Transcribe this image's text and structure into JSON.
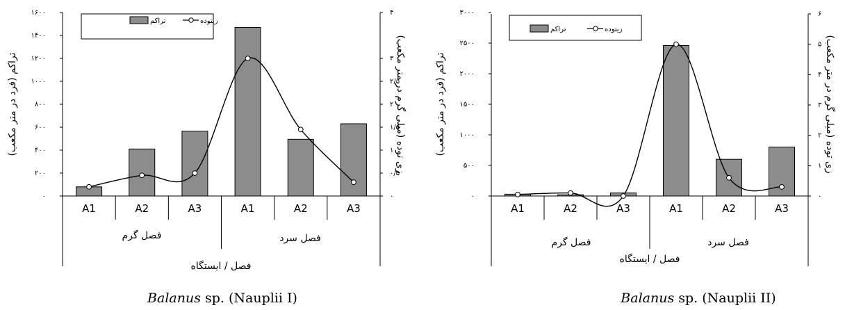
{
  "chart_data": [
    {
      "type": "bar",
      "categories": [
        "A1",
        "A2",
        "A3",
        "A1",
        "A2",
        "A3"
      ],
      "groups": [
        "فصل گرم",
        "فصل سرد"
      ],
      "xlabel": "فصل / ایستگاه",
      "ylabel": "تراکم (فرد در متر مکعب)",
      "y2label": "زی توده (میلی گرم در متر مکعب)",
      "ylim": [
        0,
        1600
      ],
      "y2lim": [
        0,
        4
      ],
      "yticks": [
        "۰",
        "۲۰۰",
        "۴۰۰",
        "۶۰۰",
        "۸۰۰",
        "۱۰۰۰",
        "۱۲۰۰",
        "۱۴۰۰",
        "۱۶۰۰"
      ],
      "y2ticks": [
        "۰",
        "۰/۵",
        "۱",
        "۱/۵",
        "۲",
        "۲/۵",
        "۳",
        "۴"
      ],
      "series": [
        {
          "name": "تراکم",
          "type": "bar",
          "values": [
            80,
            410,
            565,
            1470,
            495,
            630
          ]
        },
        {
          "name": "زیتوده",
          "type": "line",
          "axis": "right",
          "values": [
            0.2,
            0.45,
            0.5,
            3.0,
            1.45,
            0.3
          ]
        }
      ],
      "legend_position": "top-left",
      "caption_species": "Balanus",
      "caption_rest": "sp. (Nauplii I)"
    },
    {
      "type": "bar",
      "categories": [
        "A1",
        "A2",
        "A3",
        "A1",
        "A2",
        "A3"
      ],
      "groups": [
        "فصل گرم",
        "فصل سرد"
      ],
      "xlabel": "فصل / ایستگاه",
      "ylabel": "تراکم (فرد در متر مکعب)",
      "y2label": "زی توده (میلی گرم در متر مکعب)",
      "ylim": [
        0,
        3000
      ],
      "y2lim": [
        0,
        6
      ],
      "yticks": [
        "۰",
        "۵۰۰",
        "۱۰۰۰",
        "۱۵۰۰",
        "۲۰۰۰",
        "۲۵۰۰",
        "۳۰۰۰"
      ],
      "y2ticks": [
        "۰",
        "۱",
        "۲",
        "۳",
        "۴",
        "۵",
        "۶"
      ],
      "series": [
        {
          "name": "تراکم",
          "type": "bar",
          "values": [
            30,
            20,
            50,
            2460,
            600,
            800
          ]
        },
        {
          "name": "زیتوده",
          "type": "line",
          "axis": "right",
          "values": [
            0.05,
            0.1,
            0.0,
            5.0,
            0.6,
            0.3
          ]
        }
      ],
      "legend_position": "top-left",
      "caption_species": "Balanus",
      "caption_rest": "sp. (Nauplii II)"
    }
  ]
}
